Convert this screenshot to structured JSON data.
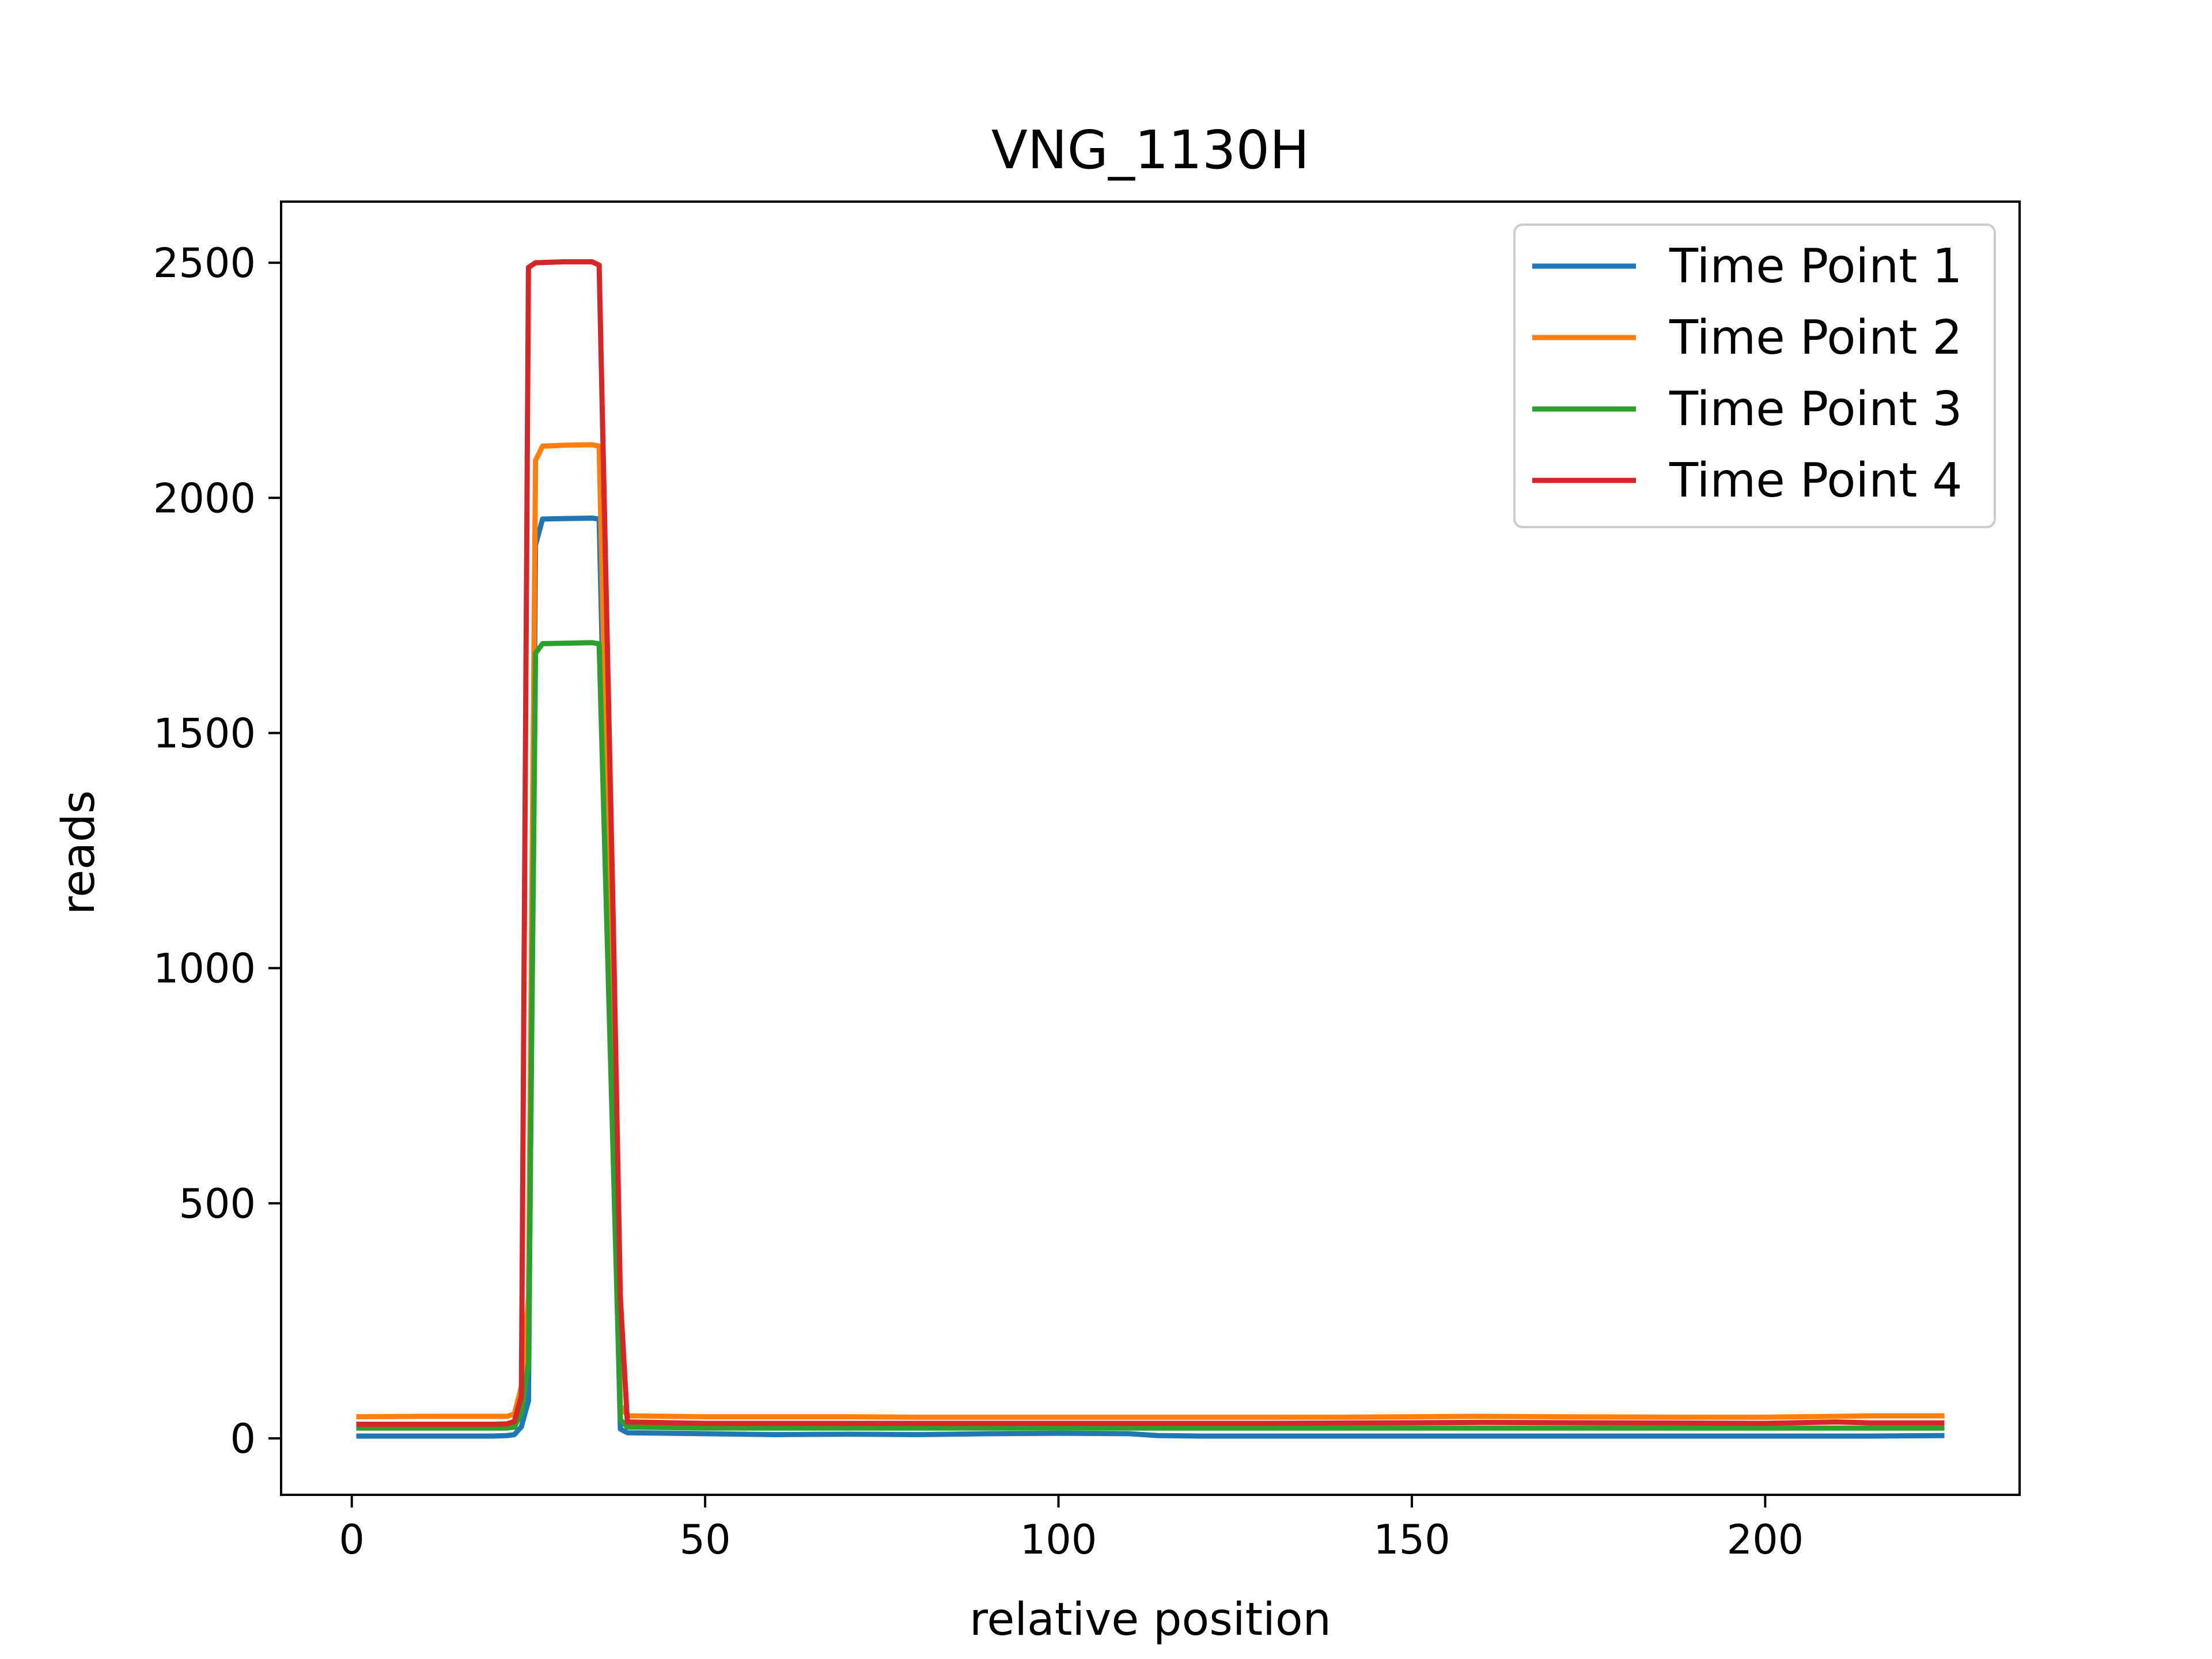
{
  "chart_data": {
    "type": "line",
    "title": "VNG_1130H",
    "xlabel": "relative position",
    "ylabel": "reads",
    "xlim": [
      -10,
      236
    ],
    "ylim": [
      -120,
      2630
    ],
    "xticks": [
      0,
      50,
      100,
      150,
      200
    ],
    "yticks": [
      0,
      500,
      1000,
      1500,
      2000,
      2500
    ],
    "grid": false,
    "legend": "top-right",
    "series": [
      {
        "name": "Time Point 1",
        "color": "#1f77b4",
        "points": [
          [
            1,
            5
          ],
          [
            10,
            5
          ],
          [
            20,
            5
          ],
          [
            22,
            6
          ],
          [
            23,
            8
          ],
          [
            24,
            25
          ],
          [
            25,
            80
          ],
          [
            26,
            1900
          ],
          [
            27,
            1955
          ],
          [
            30,
            1956
          ],
          [
            34,
            1957
          ],
          [
            35,
            1955
          ],
          [
            38,
            20
          ],
          [
            39,
            12
          ],
          [
            50,
            10
          ],
          [
            60,
            8
          ],
          [
            70,
            9
          ],
          [
            80,
            8
          ],
          [
            90,
            10
          ],
          [
            100,
            11
          ],
          [
            110,
            10
          ],
          [
            114,
            6
          ],
          [
            120,
            5
          ],
          [
            150,
            5
          ],
          [
            170,
            5
          ],
          [
            200,
            5
          ],
          [
            215,
            5
          ],
          [
            225,
            6
          ]
        ]
      },
      {
        "name": "Time Point 2",
        "color": "#ff7f0e",
        "points": [
          [
            1,
            46
          ],
          [
            10,
            47
          ],
          [
            20,
            47
          ],
          [
            22,
            47
          ],
          [
            23,
            52
          ],
          [
            24,
            110
          ],
          [
            25,
            300
          ],
          [
            26,
            2080
          ],
          [
            27,
            2110
          ],
          [
            30,
            2112
          ],
          [
            34,
            2113
          ],
          [
            35,
            2110
          ],
          [
            38,
            70
          ],
          [
            39,
            48
          ],
          [
            50,
            46
          ],
          [
            60,
            46
          ],
          [
            70,
            46
          ],
          [
            80,
            45
          ],
          [
            100,
            45
          ],
          [
            120,
            45
          ],
          [
            140,
            45
          ],
          [
            160,
            47
          ],
          [
            170,
            46
          ],
          [
            190,
            45
          ],
          [
            200,
            45
          ],
          [
            210,
            47
          ],
          [
            215,
            48
          ],
          [
            225,
            48
          ]
        ]
      },
      {
        "name": "Time Point 3",
        "color": "#2ca02c",
        "points": [
          [
            1,
            22
          ],
          [
            10,
            22
          ],
          [
            20,
            22
          ],
          [
            22,
            22
          ],
          [
            23,
            24
          ],
          [
            24,
            55
          ],
          [
            25,
            160
          ],
          [
            26,
            1670
          ],
          [
            27,
            1690
          ],
          [
            30,
            1691
          ],
          [
            34,
            1692
          ],
          [
            35,
            1690
          ],
          [
            38,
            40
          ],
          [
            39,
            24
          ],
          [
            50,
            22
          ],
          [
            70,
            22
          ],
          [
            100,
            22
          ],
          [
            130,
            22
          ],
          [
            150,
            22
          ],
          [
            170,
            22
          ],
          [
            190,
            22
          ],
          [
            200,
            22
          ],
          [
            225,
            22
          ]
        ]
      },
      {
        "name": "Time Point 4",
        "color": "#d62728",
        "points": [
          [
            1,
            30
          ],
          [
            10,
            30
          ],
          [
            20,
            30
          ],
          [
            22,
            31
          ],
          [
            23,
            36
          ],
          [
            24,
            90
          ],
          [
            25,
            2490
          ],
          [
            26,
            2500
          ],
          [
            30,
            2502
          ],
          [
            34,
            2502
          ],
          [
            35,
            2495
          ],
          [
            37,
            1100
          ],
          [
            38,
            300
          ],
          [
            39,
            35
          ],
          [
            50,
            32
          ],
          [
            70,
            32
          ],
          [
            100,
            32
          ],
          [
            130,
            32
          ],
          [
            160,
            34
          ],
          [
            180,
            33
          ],
          [
            200,
            32
          ],
          [
            210,
            35
          ],
          [
            215,
            33
          ],
          [
            225,
            33
          ]
        ]
      }
    ]
  }
}
